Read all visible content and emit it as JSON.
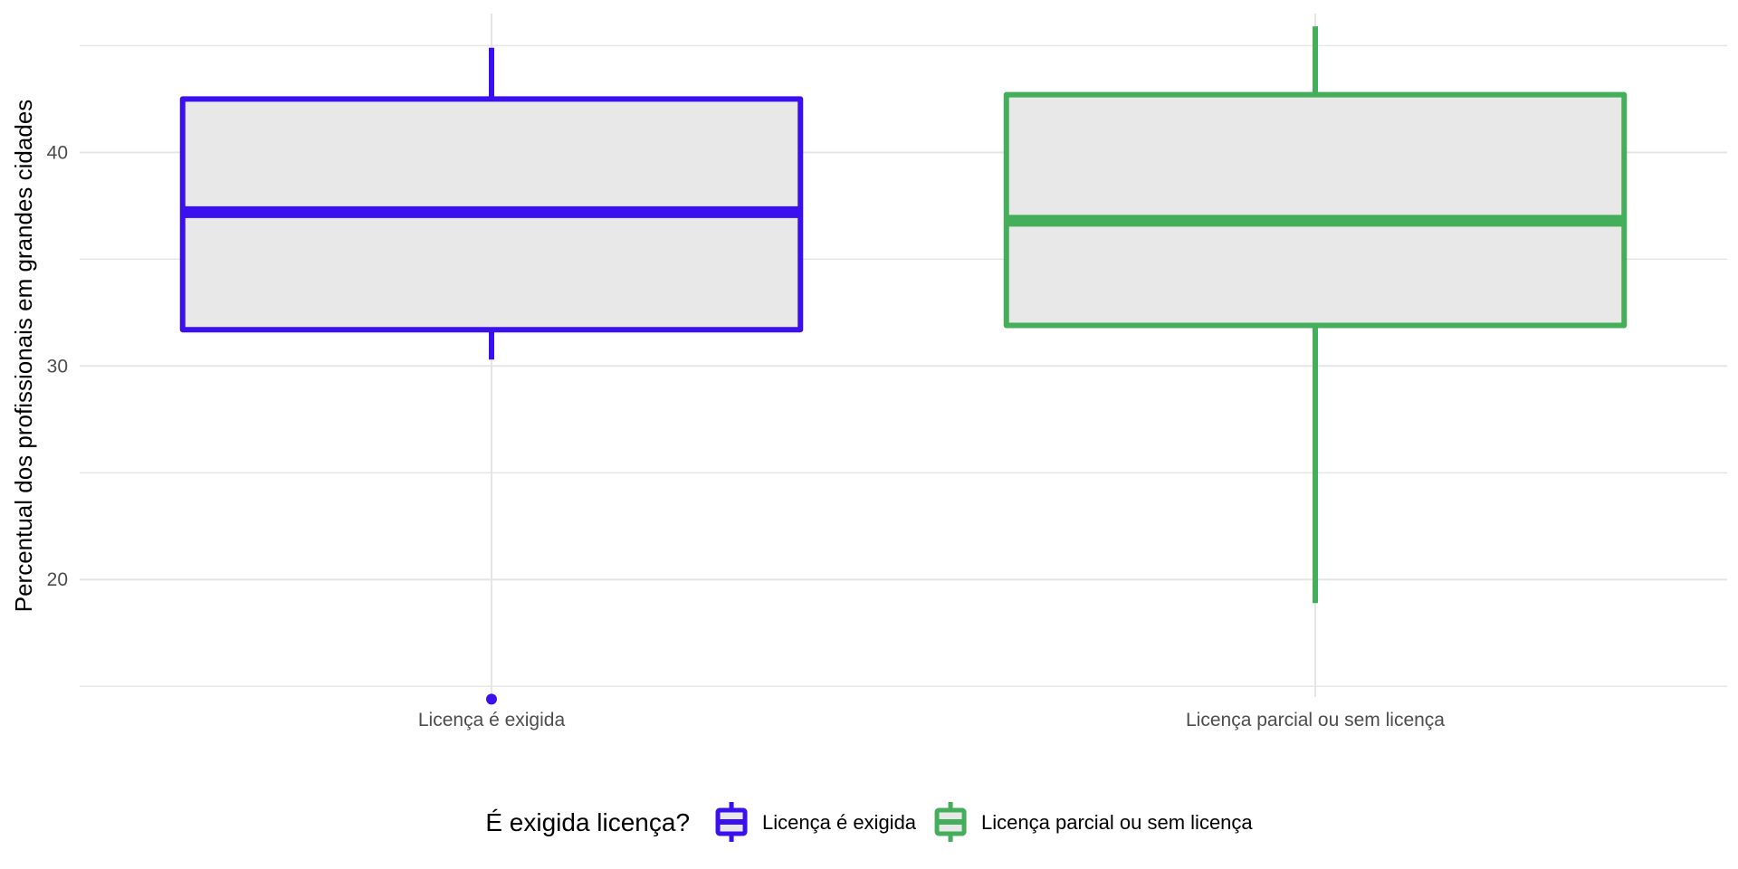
{
  "chart_data": {
    "type": "boxplot",
    "title": "",
    "xlabel": "",
    "ylabel": "Percentual dos profissionais em grandes cidades",
    "ylim": [
      14.5,
      46.5
    ],
    "y_ticks": [
      20,
      30,
      40
    ],
    "grid": true,
    "categories": [
      "Licença é exigida",
      "Licença parcial ou sem licença"
    ],
    "series": [
      {
        "name": "Licença é exigida",
        "color": "#3a10ee",
        "whisker_low": 30.3,
        "q1": 31.7,
        "median": 37.2,
        "q3": 42.5,
        "whisker_high": 44.9,
        "outliers": [
          14.4
        ]
      },
      {
        "name": "Licença parcial ou sem licença",
        "color": "#45ae5b",
        "whisker_low": 18.9,
        "q1": 31.9,
        "median": 36.8,
        "q3": 42.7,
        "whisker_high": 45.9,
        "outliers": []
      }
    ],
    "legend": {
      "title": "É exigida licença?",
      "position": "bottom",
      "entries": [
        "Licença é exigida",
        "Licença parcial ou sem licença"
      ]
    },
    "box_fill": "#e8e8e8",
    "grid_color": "#e5e5e5"
  }
}
